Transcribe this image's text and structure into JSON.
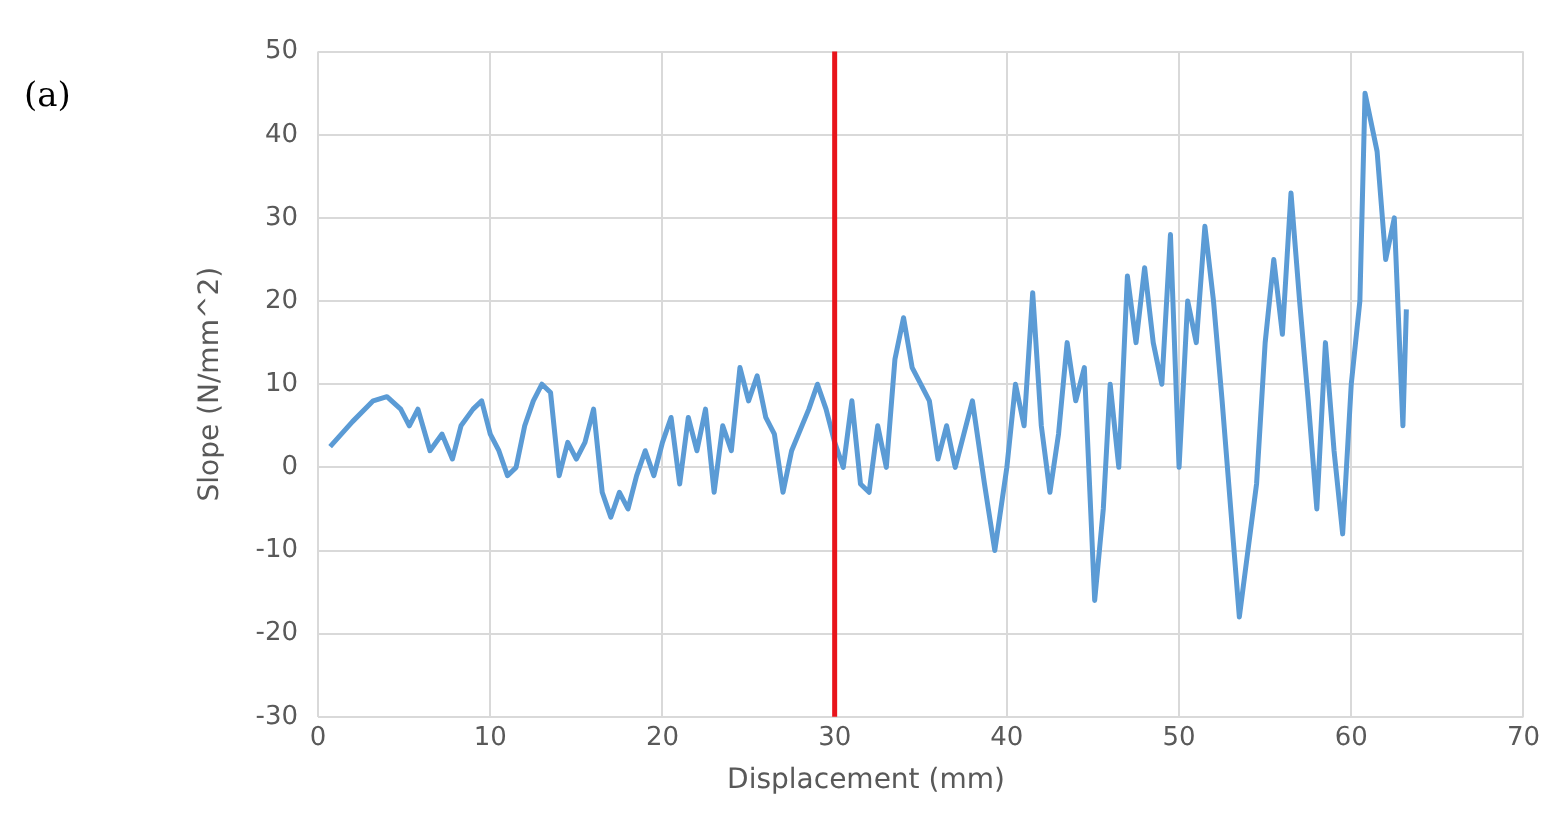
{
  "chart_data": {
    "type": "line",
    "xlabel": "Displacement (mm)",
    "ylabel": "Slope (N/mm^2)",
    "annotations": [
      "(a)"
    ],
    "xlim": [
      0,
      70
    ],
    "xticks": [
      0,
      10,
      20,
      30,
      40,
      50,
      60,
      70
    ],
    "ylim": [
      -30,
      50
    ],
    "yticks": [
      -30,
      -20,
      -10,
      0,
      10,
      20,
      30,
      40,
      50
    ],
    "grid": true,
    "legend": false,
    "marker": "none",
    "ref_lines": [
      {
        "axis": "x",
        "value": 30,
        "color": "#e8141b"
      }
    ],
    "series": [
      {
        "color": "#5b9bd5",
        "x": [
          0.7,
          2,
          3.2,
          4,
          4.8,
          5.3,
          5.8,
          6.5,
          7.2,
          7.8,
          8.3,
          9,
          9.5,
          10,
          10.5,
          11,
          11.5,
          12,
          12.5,
          13,
          13.5,
          14,
          14.5,
          15,
          15.5,
          16,
          16.5,
          17,
          17.5,
          18,
          18.5,
          19,
          19.5,
          20,
          20.5,
          21,
          21.5,
          22,
          22.5,
          23,
          23.5,
          24,
          24.5,
          25,
          25.5,
          26,
          26.5,
          27,
          27.5,
          28.5,
          29,
          29.5,
          30,
          30.5,
          31,
          31.5,
          32,
          32.5,
          33,
          33.5,
          34,
          34.5,
          35,
          35.5,
          36,
          36.5,
          37,
          37.5,
          38,
          38.7,
          39.3,
          40,
          40.5,
          41,
          41.5,
          42,
          42.5,
          43,
          43.5,
          44,
          44.5,
          45.1,
          45.6,
          46,
          46.5,
          47,
          47.5,
          48,
          48.5,
          49,
          49.5,
          50,
          50.5,
          51,
          51.5,
          52,
          52.5,
          53,
          53.5,
          54,
          54.5,
          55,
          55.5,
          56,
          56.5,
          57,
          57.5,
          58,
          58.5,
          59,
          59.5,
          60,
          60.5,
          60.8,
          61.5,
          62,
          62.5,
          63,
          63.2
        ],
        "values": [
          2.5,
          5.5,
          8,
          8.5,
          7,
          5,
          7,
          2,
          4,
          1,
          5,
          7,
          8,
          4,
          2,
          -1,
          0,
          5,
          8,
          10,
          9,
          -1,
          3,
          1,
          3,
          7,
          -3,
          -6,
          -3,
          -5,
          -1,
          2,
          -1,
          3,
          6,
          -2,
          6,
          2,
          7,
          -3,
          5,
          2,
          12,
          8,
          11,
          6,
          4,
          -3,
          2,
          7,
          10,
          7,
          3,
          0,
          8,
          -2,
          -3,
          5,
          0,
          13,
          18,
          12,
          10,
          8,
          1,
          5,
          0,
          4,
          8,
          -2,
          -10,
          0,
          10,
          5,
          21,
          5,
          -3,
          4,
          15,
          8,
          12,
          -16,
          -5,
          10,
          0,
          23,
          15,
          24,
          15,
          10,
          28,
          0,
          20,
          15,
          29,
          20,
          8,
          -5,
          -18,
          -10,
          -2,
          15,
          25,
          16,
          33,
          20,
          8,
          -5,
          15,
          2,
          -8,
          10,
          20,
          45,
          38,
          25,
          30,
          5,
          19
        ]
      }
    ]
  }
}
